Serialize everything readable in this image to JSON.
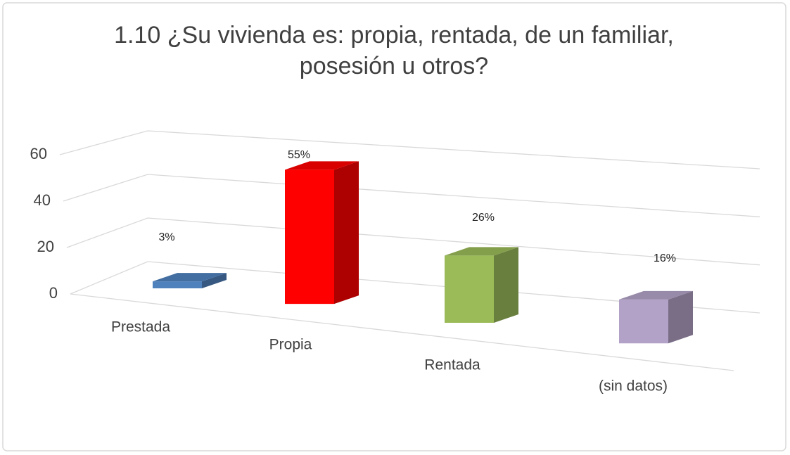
{
  "chart_data": {
    "type": "bar3d",
    "title": "1.10  ¿Su vivienda es: propia, rentada, de un familiar, posesión u otros?",
    "categories": [
      "Prestada",
      "Propia",
      "Rentada",
      "(sin datos)"
    ],
    "values": [
      3,
      55,
      26,
      16
    ],
    "value_labels": [
      "3%",
      "55%",
      "26%",
      "16%"
    ],
    "colors": [
      "#4f81bd",
      "#ff0000",
      "#9bbb59",
      "#b3a2c7"
    ],
    "ylim": [
      0,
      60
    ],
    "yticks": [
      0,
      20,
      40,
      60
    ],
    "grid": true
  }
}
